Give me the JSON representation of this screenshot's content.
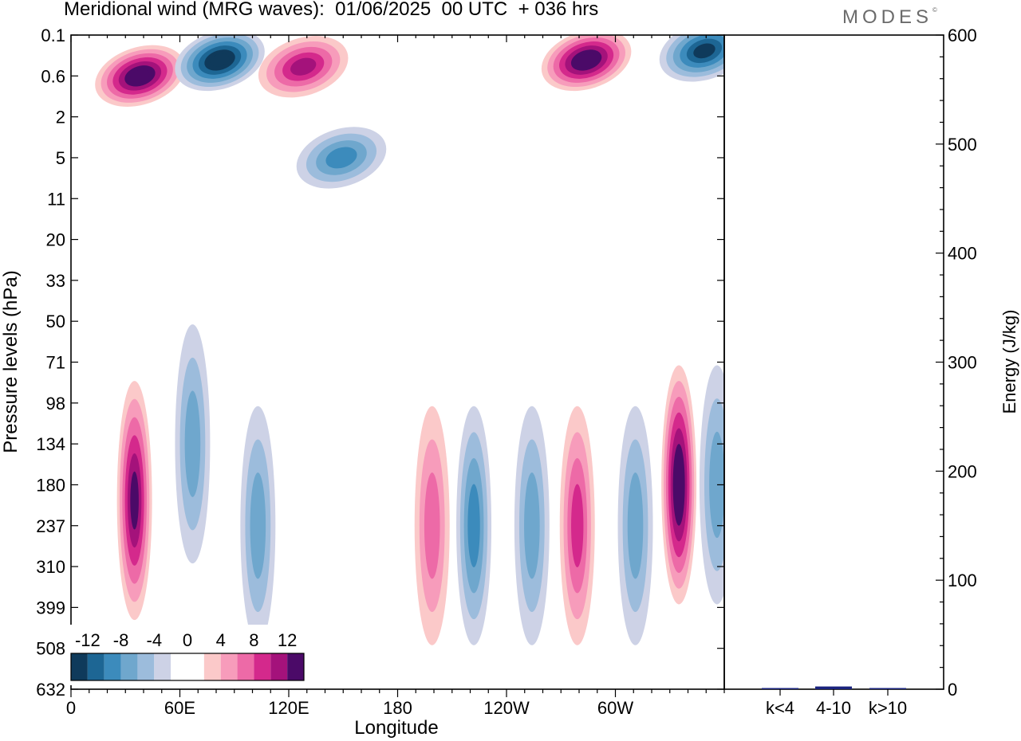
{
  "title": "Meridional wind (MRG waves):  01/06/2025  00 UTC  + 036 hrs",
  "logo_text": "MODES",
  "logo_mark": "©",
  "chart_data": [
    {
      "type": "heatmap",
      "title": "Meridional wind (MRG waves):  01/06/2025  00 UTC  + 036 hrs",
      "xlabel": "Longitude",
      "ylabel": "Pressure levels (hPa)",
      "x_ticks": [
        "0",
        "60E",
        "120E",
        "180",
        "120W",
        "60W"
      ],
      "x_tick_degrees": [
        0,
        60,
        120,
        180,
        240,
        300
      ],
      "x_range_degrees": [
        0,
        360
      ],
      "y_ticks": [
        "0.1",
        "0.6",
        "2",
        "5",
        "11",
        "20",
        "33",
        "50",
        "71",
        "98",
        "134",
        "180",
        "237",
        "310",
        "399",
        "508",
        "632"
      ],
      "colorbar": {
        "tick_labels": [
          "-12",
          "-8",
          "-4",
          "0",
          "4",
          "8",
          "12"
        ],
        "levels": [
          -14,
          -12,
          -10,
          -8,
          -6,
          -4,
          -2,
          0,
          2,
          4,
          6,
          8,
          10,
          12,
          14
        ],
        "colors": [
          "#0f3a5b",
          "#1d6694",
          "#3c8bbc",
          "#6fa7cd",
          "#9cbcdc",
          "#cdd2e6",
          "#ffffff",
          "#ffffff",
          "#fbc9c9",
          "#f79cbb",
          "#ed6aa7",
          "#d4298c",
          "#a4127b",
          "#4b0a68"
        ]
      },
      "features": [
        {
          "lon": 38,
          "level": "0.6",
          "value": 14,
          "sign": "positive"
        },
        {
          "lon": 82,
          "level": "0.3",
          "value": -14,
          "sign": "negative"
        },
        {
          "lon": 128,
          "level": "0.4",
          "value": 10,
          "sign": "positive"
        },
        {
          "lon": 149,
          "level": "5",
          "value": -9,
          "sign": "negative"
        },
        {
          "lon": 284,
          "level": "0.3",
          "value": 15,
          "sign": "positive"
        },
        {
          "lon": 349,
          "level": "0.2",
          "value": -13,
          "sign": "negative"
        },
        {
          "lon": 35,
          "level": "200",
          "value": 13,
          "sign": "positive"
        },
        {
          "lon": 67,
          "level": "134",
          "value": -7,
          "sign": "negative"
        },
        {
          "lon": 103,
          "level": "237",
          "value": -6,
          "sign": "negative"
        },
        {
          "lon": 199,
          "level": "237",
          "value": 7,
          "sign": "positive"
        },
        {
          "lon": 222,
          "level": "237",
          "value": -8,
          "sign": "negative"
        },
        {
          "lon": 254,
          "level": "237",
          "value": -7,
          "sign": "negative"
        },
        {
          "lon": 279,
          "level": "237",
          "value": 8,
          "sign": "positive"
        },
        {
          "lon": 311,
          "level": "237",
          "value": -7,
          "sign": "negative"
        },
        {
          "lon": 335,
          "level": "180",
          "value": 15,
          "sign": "positive"
        },
        {
          "lon": 356,
          "level": "180",
          "value": -6,
          "sign": "negative"
        }
      ]
    },
    {
      "type": "bar",
      "ylabel": "Energy (J/kg)",
      "categories": [
        "k<4",
        "4-10",
        "k>10"
      ],
      "values": [
        0.5,
        2.5,
        0.5
      ],
      "ylim": [
        0,
        600
      ],
      "y_ticks": [
        "0",
        "100",
        "200",
        "300",
        "400",
        "500",
        "600"
      ],
      "bar_color": "#1a237e"
    }
  ]
}
